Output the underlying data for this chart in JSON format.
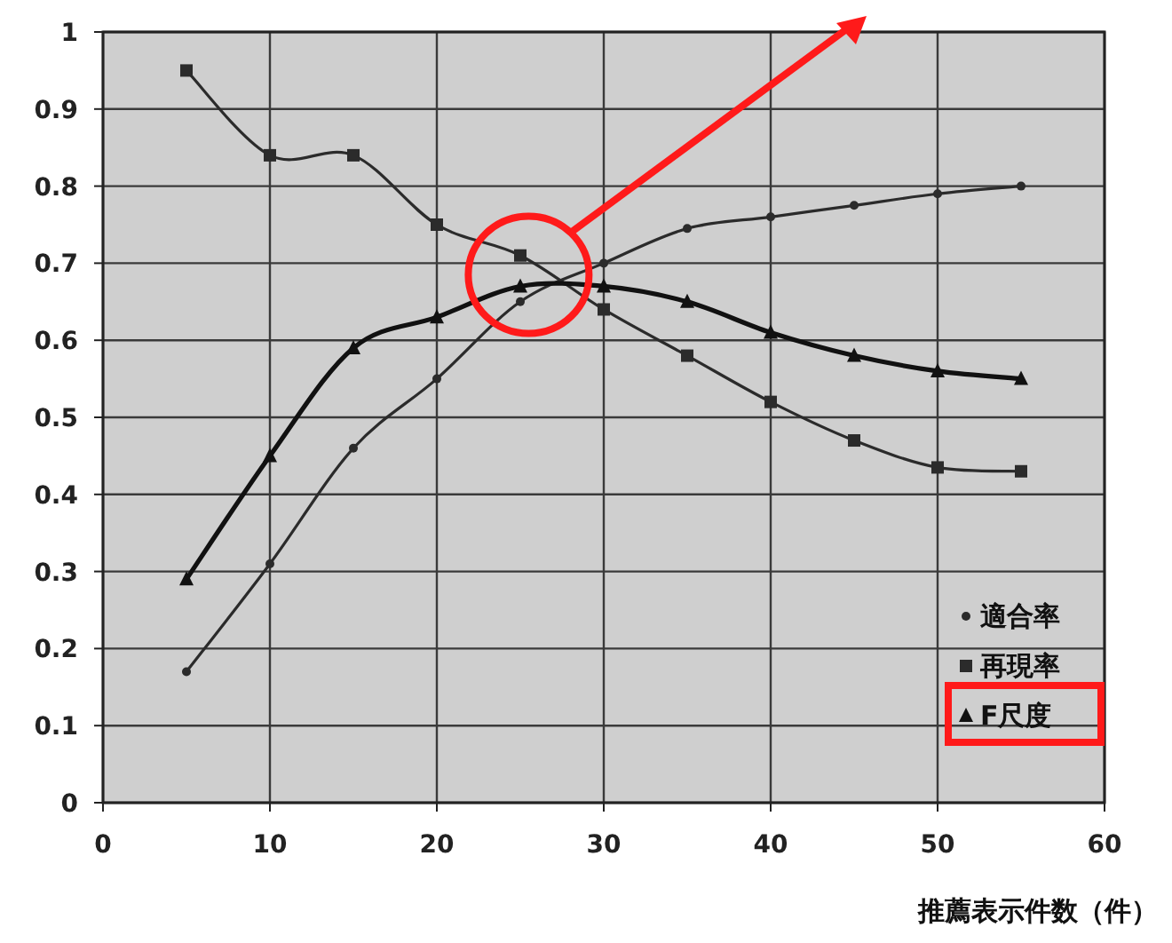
{
  "chart_data": {
    "type": "line",
    "xlabel": "推薦表示件数（件）",
    "x": [
      5,
      10,
      15,
      20,
      25,
      30,
      35,
      40,
      45,
      50,
      55
    ],
    "xlim": [
      0,
      60
    ],
    "xticks": [
      0,
      10,
      20,
      30,
      40,
      50,
      60
    ],
    "ylim": [
      0,
      1
    ],
    "yticks": [
      0,
      0.1,
      0.2,
      0.3,
      0.4,
      0.5,
      0.6,
      0.7,
      0.8,
      0.9,
      1
    ],
    "grid": true,
    "legend": "bottom right",
    "series": [
      {
        "name": "適合率",
        "color": "#2b2b2b",
        "marker": "circle",
        "values": [
          0.17,
          0.31,
          0.46,
          0.55,
          0.65,
          0.7,
          0.745,
          0.76,
          0.775,
          0.79,
          0.8
        ]
      },
      {
        "name": "再現率",
        "color": "#2b2b2b",
        "marker": "square",
        "values": [
          0.95,
          0.84,
          0.84,
          0.75,
          0.71,
          0.64,
          0.58,
          0.52,
          0.47,
          0.435,
          0.43
        ]
      },
      {
        "name": "F尺度",
        "color": "#111111",
        "marker": "triangle",
        "values": [
          0.29,
          0.45,
          0.59,
          0.63,
          0.67,
          0.67,
          0.65,
          0.61,
          0.58,
          0.56,
          0.55
        ]
      }
    ]
  }
}
